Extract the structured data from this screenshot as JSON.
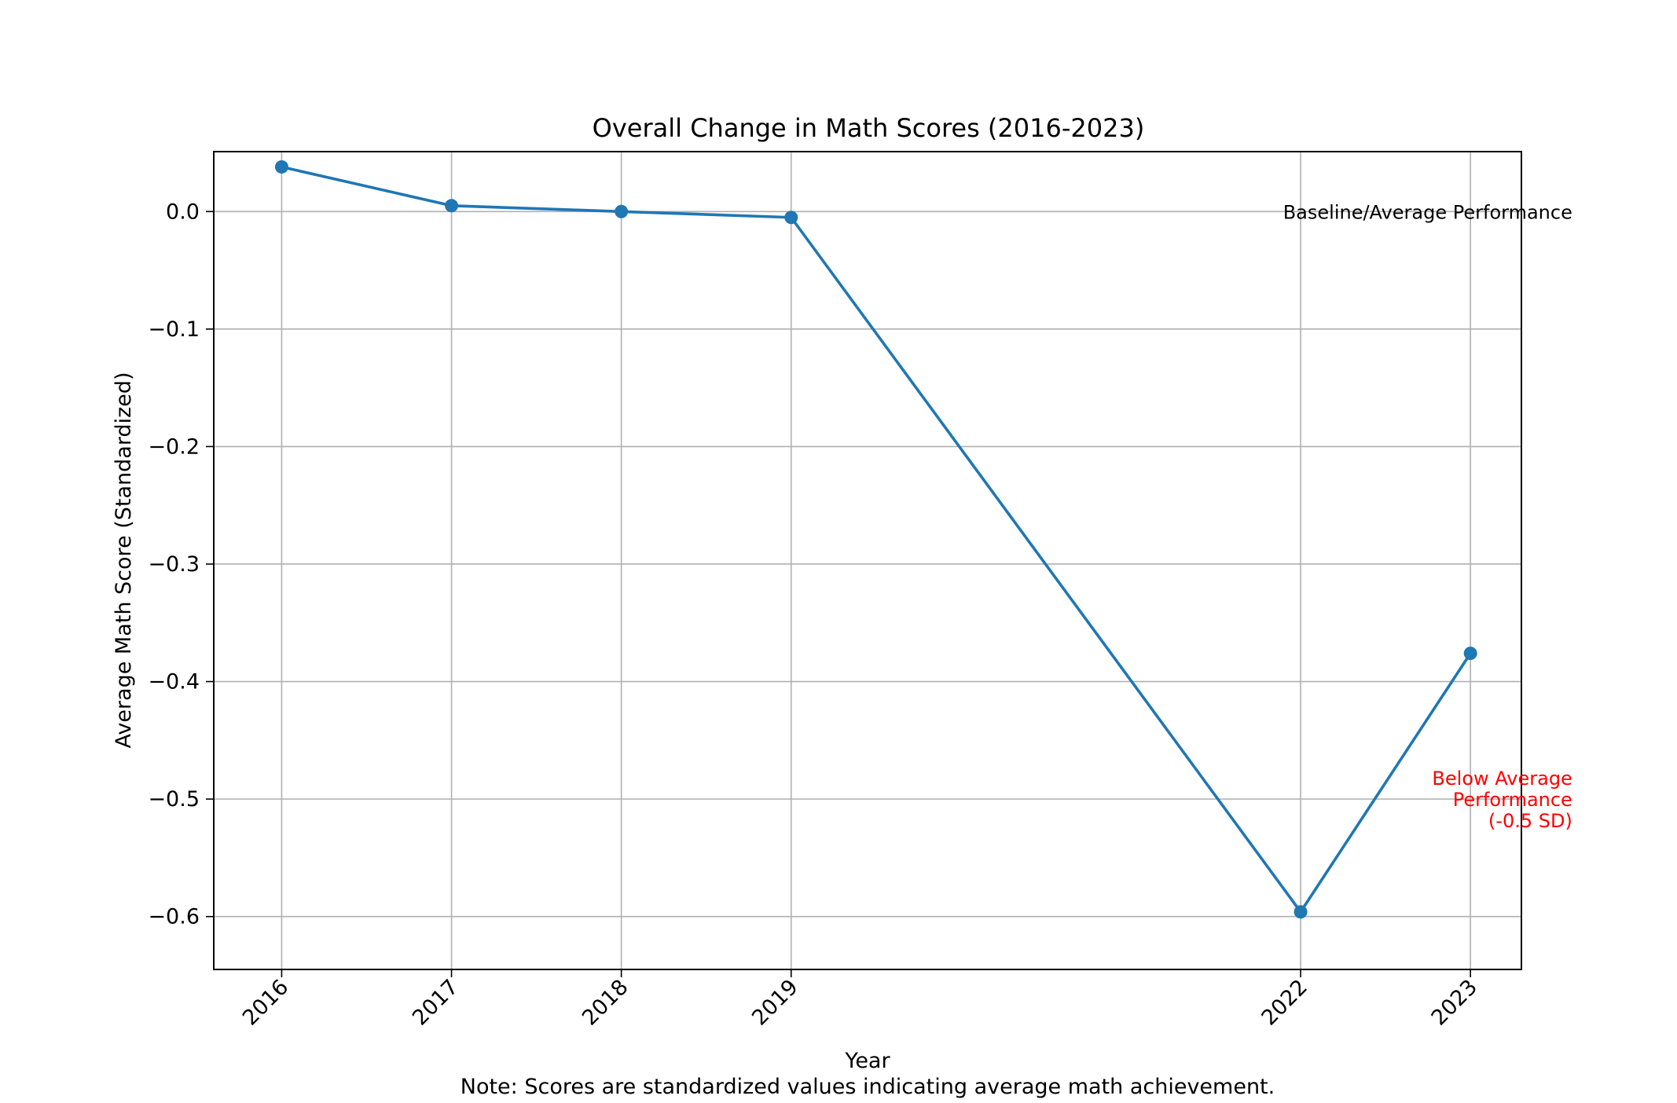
{
  "chart_data": {
    "type": "line",
    "title": "Overall Change in Math Scores (2016-2023)",
    "xlabel": "Year",
    "ylabel": "Average Math Score (Standardized)",
    "note": "Note: Scores are standardized values indicating average math achievement.",
    "x": [
      2016,
      2017,
      2018,
      2019,
      2022,
      2023
    ],
    "x_tick_labels": [
      "2016",
      "2017",
      "2018",
      "2019",
      "2022",
      "2023"
    ],
    "series": [
      {
        "values": [
          0.038,
          0.005,
          0.0,
          -0.005,
          -0.596,
          -0.376
        ],
        "color": "#1f77b4",
        "marker": "circle"
      }
    ],
    "xlim": [
      2015.6,
      2023.3
    ],
    "ylim": [
      -0.645,
      0.051
    ],
    "y_ticks": [
      0.0,
      -0.1,
      -0.2,
      -0.3,
      -0.4,
      -0.5,
      -0.6
    ],
    "y_tick_labels": [
      "0.0",
      "−0.1",
      "−0.2",
      "−0.3",
      "−0.4",
      "−0.5",
      "−0.6"
    ],
    "grid": true,
    "annotations": [
      {
        "lines": [
          "Baseline/Average Performance"
        ],
        "x": 2023.6,
        "y": 0.0,
        "color": "#000000",
        "align": "right"
      },
      {
        "lines": [
          "Below Average",
          "Performance",
          "(-0.5 SD)"
        ],
        "x": 2023.6,
        "y": -0.5,
        "color": "#ff0000",
        "align": "right"
      }
    ]
  }
}
